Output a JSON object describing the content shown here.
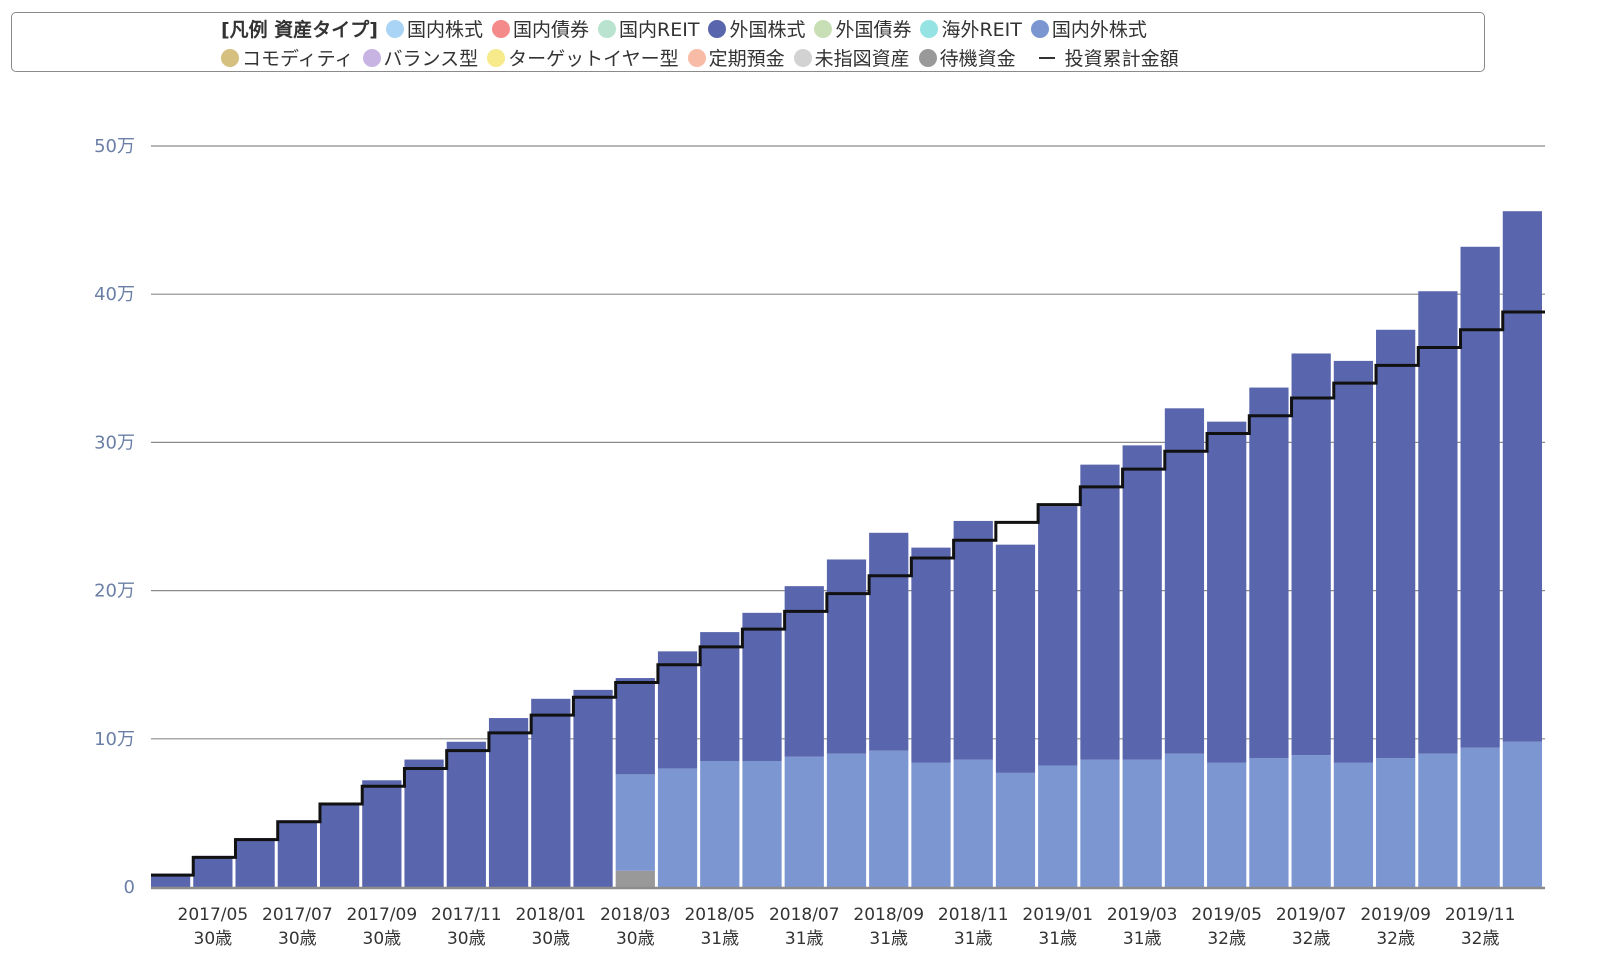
{
  "legend": {
    "title": "[凡例 資産タイプ]",
    "items_row1": [
      {
        "label": "国内株式",
        "color": "#aad4f5"
      },
      {
        "label": "国内債券",
        "color": "#f48a8a"
      },
      {
        "label": "国内REIT",
        "color": "#b9e3cf"
      },
      {
        "label": "外国株式",
        "color": "#5966ad"
      },
      {
        "label": "外国債券",
        "color": "#c8dfb6"
      },
      {
        "label": "海外REIT",
        "color": "#96e3e4"
      },
      {
        "label": "国内外株式",
        "color": "#7b96d1"
      }
    ],
    "items_row2": [
      {
        "label": "コモディティ",
        "color": "#d5c07f"
      },
      {
        "label": "バランス型",
        "color": "#c8b4e2"
      },
      {
        "label": "ターゲットイヤー型",
        "color": "#f7ea8a"
      },
      {
        "label": "定期預金",
        "color": "#f8bba6"
      },
      {
        "label": "未指図資産",
        "color": "#d2d2d2"
      },
      {
        "label": "待機資金",
        "color": "#999999"
      }
    ],
    "line_label": "投資累計金額"
  },
  "chart_data": {
    "type": "bar",
    "stacked": true,
    "grid": true,
    "legend_position": "top",
    "ylim": [
      0,
      500000
    ],
    "y_ticks": [
      {
        "value": 0,
        "label": "0"
      },
      {
        "value": 100000,
        "label": "10万"
      },
      {
        "value": 200000,
        "label": "20万"
      },
      {
        "value": 300000,
        "label": "30万"
      },
      {
        "value": 400000,
        "label": "40万"
      },
      {
        "value": 500000,
        "label": "50万"
      }
    ],
    "categories": [
      "2017/04",
      "2017/05",
      "2017/06",
      "2017/07",
      "2017/08",
      "2017/09",
      "2017/10",
      "2017/11",
      "2017/12",
      "2018/01",
      "2018/02",
      "2018/03",
      "2018/04",
      "2018/05",
      "2018/06",
      "2018/07",
      "2018/08",
      "2018/09",
      "2018/10",
      "2018/11",
      "2018/12",
      "2019/01",
      "2019/02",
      "2019/03",
      "2019/04",
      "2019/05",
      "2019/06",
      "2019/07",
      "2019/08",
      "2019/09",
      "2019/10",
      "2019/11",
      "2019/12"
    ],
    "x_labels": [
      {
        "index": 1,
        "date": "2017/05",
        "age": "30歳"
      },
      {
        "index": 3,
        "date": "2017/07",
        "age": "30歳"
      },
      {
        "index": 5,
        "date": "2017/09",
        "age": "30歳"
      },
      {
        "index": 7,
        "date": "2017/11",
        "age": "30歳"
      },
      {
        "index": 9,
        "date": "2018/01",
        "age": "30歳"
      },
      {
        "index": 11,
        "date": "2018/03",
        "age": "30歳"
      },
      {
        "index": 13,
        "date": "2018/05",
        "age": "31歳"
      },
      {
        "index": 15,
        "date": "2018/07",
        "age": "31歳"
      },
      {
        "index": 17,
        "date": "2018/09",
        "age": "31歳"
      },
      {
        "index": 19,
        "date": "2018/11",
        "age": "31歳"
      },
      {
        "index": 21,
        "date": "2019/01",
        "age": "31歳"
      },
      {
        "index": 23,
        "date": "2019/03",
        "age": "31歳"
      },
      {
        "index": 25,
        "date": "2019/05",
        "age": "32歳"
      },
      {
        "index": 27,
        "date": "2019/07",
        "age": "32歳"
      },
      {
        "index": 29,
        "date": "2019/09",
        "age": "32歳"
      },
      {
        "index": 31,
        "date": "2019/11",
        "age": "32歳"
      }
    ],
    "series": [
      {
        "name": "待機資金",
        "color": "#999999",
        "values": [
          0,
          0,
          0,
          0,
          0,
          0,
          0,
          0,
          0,
          0,
          0,
          11000,
          0,
          0,
          0,
          0,
          0,
          0,
          0,
          0,
          0,
          0,
          0,
          0,
          0,
          0,
          0,
          0,
          0,
          0,
          0,
          0,
          0
        ]
      },
      {
        "name": "国内外株式",
        "color": "#7b96d1",
        "values": [
          0,
          0,
          0,
          0,
          0,
          0,
          0,
          0,
          0,
          0,
          0,
          65000,
          80000,
          85000,
          85000,
          88000,
          90000,
          92000,
          84000,
          86000,
          77000,
          82000,
          86000,
          86000,
          90000,
          84000,
          87000,
          89000,
          84000,
          87000,
          90000,
          94000,
          98000
        ]
      },
      {
        "name": "外国株式",
        "color": "#5966ad",
        "values": [
          9000,
          21000,
          33000,
          45000,
          57000,
          72000,
          86000,
          98000,
          114000,
          127000,
          133000,
          65000,
          79000,
          87000,
          100000,
          115000,
          131000,
          147000,
          145000,
          161000,
          154000,
          175000,
          199000,
          212000,
          233000,
          230000,
          250000,
          271000,
          271000,
          289000,
          312000,
          338000,
          358000
        ]
      }
    ],
    "cumulative_investment": [
      8000,
      20000,
      32000,
      44000,
      56000,
      68000,
      80000,
      92000,
      104000,
      116000,
      128000,
      138000,
      150000,
      162000,
      174000,
      186000,
      198000,
      210000,
      222000,
      234000,
      246000,
      258000,
      270000,
      282000,
      294000,
      306000,
      318000,
      330000,
      340000,
      352000,
      364000,
      376000,
      388000
    ]
  }
}
